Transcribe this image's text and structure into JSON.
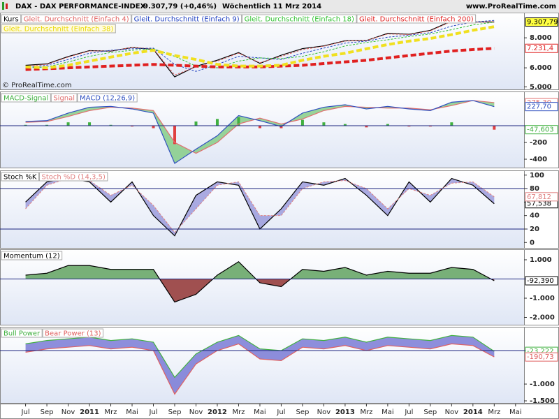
{
  "header": {
    "title": "DAX - DAX PERFORMANCE-INDEX",
    "quote": "9.307,79 (+0,46%)",
    "period": "Wöchentlich 11 Mrz 2014",
    "site": "www.ProRealTime.com",
    "copyright": "© ProRealTime.com"
  },
  "x_axis": {
    "x": [
      1,
      3,
      5,
      7,
      9,
      11,
      13,
      15,
      17,
      19,
      21,
      23,
      25,
      27,
      29,
      31,
      33,
      35,
      37,
      39,
      41,
      43,
      45
    ],
    "xlim": [
      -1.4,
      47.8
    ],
    "xticks": [
      {
        "value": 1,
        "label": "Jul"
      },
      {
        "value": 3,
        "label": "Sep"
      },
      {
        "value": 5,
        "label": "Nov"
      },
      {
        "value": 7,
        "label": "2011"
      },
      {
        "value": 9,
        "label": "Mrz"
      },
      {
        "value": 11,
        "label": "Mai"
      },
      {
        "value": 13,
        "label": "Jul"
      },
      {
        "value": 15,
        "label": "Sep"
      },
      {
        "value": 17,
        "label": "Nov"
      },
      {
        "value": 19,
        "label": "2012"
      },
      {
        "value": 21,
        "label": "Mrz"
      },
      {
        "value": 23,
        "label": "Mai"
      },
      {
        "value": 25,
        "label": "Jul"
      },
      {
        "value": 27,
        "label": "Sep"
      },
      {
        "value": 29,
        "label": "Nov"
      },
      {
        "value": 31,
        "label": "2013"
      },
      {
        "value": 33,
        "label": "Mrz"
      },
      {
        "value": 35,
        "label": "Mai"
      },
      {
        "value": 37,
        "label": "Jul"
      },
      {
        "value": 39,
        "label": "Sep"
      },
      {
        "value": 41,
        "label": "Nov"
      },
      {
        "value": 43,
        "label": "2014"
      },
      {
        "value": 45,
        "label": "Mrz"
      },
      {
        "value": 47,
        "label": "Mai"
      }
    ]
  },
  "chart_data": [
    {
      "type": "line",
      "log_scale": true,
      "ylim": [
        4880,
        10190
      ],
      "yticks": [
        {
          "value": 5000,
          "label": "5.000"
        },
        {
          "value": 6000,
          "label": "6.000"
        },
        {
          "value": 8000,
          "label": "8.000"
        }
      ],
      "series": [
        {
          "name": "Kurs",
          "color": "#000000",
          "style": "line",
          "last_label": "9.307,79",
          "label_fill": "#ffff40",
          "values": [
            6148,
            6229,
            6688,
            7077,
            7041,
            7293,
            7158,
            5502,
            6089,
            6458,
            6947,
            6264,
            6772,
            7216,
            7405,
            7776,
            7795,
            8348,
            8276,
            8594,
            9405,
            9306,
            9307.79
          ]
        },
        {
          "name": "Gleit. Durchschnitt (Einfach 4)",
          "color": "#e06060",
          "style": "dashed",
          "values": [
            6100,
            6200,
            6650,
            7050,
            7050,
            7300,
            7200,
            5600,
            6050,
            6400,
            6900,
            6300,
            6700,
            7150,
            7380,
            7750,
            7800,
            8300,
            8250,
            8550,
            9350,
            9300,
            9350
          ]
        },
        {
          "name": "Gleit. Durchschnitt (Einfach 9)",
          "color": "#2040c0",
          "style": "dashed",
          "values": [
            6000,
            6150,
            6500,
            6900,
            7100,
            7200,
            7250,
            6200,
            5800,
            6200,
            6700,
            6600,
            6500,
            6900,
            7250,
            7600,
            7750,
            8050,
            8200,
            8400,
            8950,
            9300,
            9450
          ]
        },
        {
          "name": "Gleit. Durchschnitt (Einfach 18)",
          "color": "#30c030",
          "style": "dashed",
          "values": [
            6000,
            6050,
            6350,
            6700,
            6950,
            7100,
            7200,
            6700,
            6100,
            6000,
            6400,
            6600,
            6550,
            6700,
            7000,
            7400,
            7650,
            7850,
            8100,
            8300,
            8650,
            9050,
            9300
          ]
        },
        {
          "name": "Gleit. Durchschnitt (Einfach 200)",
          "color": "#e02020",
          "style": "thick-dashed",
          "last_label": "7.231,4",
          "label_fill": "#ffffff",
          "values": [
            5900,
            5950,
            6000,
            6050,
            6100,
            6150,
            6200,
            6150,
            6100,
            6050,
            6050,
            6050,
            6100,
            6150,
            6250,
            6350,
            6450,
            6600,
            6750,
            6900,
            7050,
            7150,
            7231.4
          ]
        },
        {
          "name": "Gleit. Durchschnitt (Einfach 38)",
          "color": "#f0e020",
          "style": "thick-dashed",
          "values": [
            6050,
            6000,
            6150,
            6400,
            6650,
            6900,
            7100,
            6750,
            6500,
            6200,
            6100,
            6100,
            6150,
            6450,
            6700,
            6900,
            7200,
            7500,
            7750,
            7950,
            8250,
            8600,
            8900
          ]
        }
      ]
    },
    {
      "type": "line",
      "ylim": [
        -500,
        408
      ],
      "yticks": [
        -200,
        -400
      ],
      "hlines": [
        0
      ],
      "fill_between": {
        "series": [
          2,
          1
        ],
        "color": "#78c878"
      },
      "series": [
        {
          "name": "MACD-Signal",
          "color": "#40b040",
          "color_negative": "#e04040",
          "style": "bar",
          "last_label": "-47,603",
          "label_fill": "#ffffff",
          "values": [
            10,
            10,
            40,
            40,
            10,
            -10,
            -30,
            -220,
            50,
            80,
            100,
            -30,
            -30,
            70,
            40,
            20,
            -20,
            20,
            -10,
            -10,
            40,
            0,
            -47.603
          ]
        },
        {
          "name": "Signal",
          "color": "#e07070",
          "style": "line",
          "last_label": "275,30",
          "label_fill": "#ffffff",
          "values": [
            40,
            50,
            110,
            180,
            220,
            210,
            180,
            -200,
            -330,
            -200,
            20,
            90,
            20,
            80,
            180,
            230,
            220,
            210,
            210,
            190,
            240,
            300,
            275.3
          ]
        },
        {
          "name": "MACD (12,26,9)",
          "color": "#3050c0",
          "style": "line",
          "last_label": "227,70",
          "label_fill": "#ffffff",
          "values": [
            50,
            60,
            150,
            220,
            230,
            200,
            150,
            -450,
            -280,
            -120,
            120,
            60,
            -10,
            150,
            220,
            250,
            200,
            230,
            200,
            180,
            280,
            300,
            227.7
          ]
        }
      ]
    },
    {
      "type": "line",
      "ylim": [
        -8,
        107
      ],
      "yticks": [
        0,
        20,
        40,
        60,
        80,
        100
      ],
      "hlines": [
        80,
        20
      ],
      "fill_between": {
        "series": [
          0,
          1
        ],
        "color": "#9090d8"
      },
      "series": [
        {
          "name": "Stoch %K",
          "color": "#000000",
          "style": "line",
          "last_label": "57,538",
          "label_fill": "#ffffff",
          "values": [
            60,
            90,
            95,
            90,
            60,
            90,
            40,
            10,
            70,
            90,
            85,
            20,
            50,
            90,
            85,
            95,
            70,
            40,
            90,
            60,
            95,
            85,
            57.538
          ]
        },
        {
          "name": "Stoch %D (14,3,5)",
          "color": "#e08080",
          "style": "dashed",
          "last_label": "67,812",
          "label_fill": "#ffffff",
          "values": [
            50,
            85,
            95,
            92,
            70,
            85,
            55,
            15,
            50,
            85,
            90,
            40,
            40,
            80,
            90,
            92,
            80,
            50,
            80,
            70,
            88,
            90,
            67.812
          ]
        }
      ]
    },
    {
      "type": "line",
      "ylim": [
        -2382,
        1545
      ],
      "yticks": [
        {
          "value": 1000,
          "label": "1.000"
        },
        {
          "value": -1000,
          "label": "-1.000"
        },
        {
          "value": -2000,
          "label": "-2.000"
        }
      ],
      "hlines": [
        0
      ],
      "series": [
        {
          "name": "Momentum (12)",
          "color": "#000000",
          "style": "area",
          "fill_above": "#78b078",
          "fill_below": "#a05050",
          "last_label": "-92,390",
          "label_fill": "#ffffff",
          "values": [
            200,
            300,
            700,
            700,
            500,
            500,
            500,
            -1200,
            -800,
            200,
            900,
            -200,
            -400,
            500,
            400,
            600,
            200,
            400,
            300,
            300,
            600,
            500,
            -92.39
          ]
        }
      ]
    },
    {
      "type": "line",
      "ylim": [
        -1562,
        708
      ],
      "yticks": [
        {
          "value": -1000,
          "label": "-1.000"
        },
        {
          "value": -1500,
          "label": "-1.500"
        }
      ],
      "hlines": [
        0
      ],
      "fill_between": {
        "series": [
          0,
          1
        ],
        "color": "#6a6ad0"
      },
      "series": [
        {
          "name": "Bull Power",
          "color": "#40b040",
          "style": "line",
          "last_label": "-23,222",
          "label_fill": "#ffffff",
          "values": [
            200,
            300,
            350,
            400,
            300,
            350,
            250,
            -800,
            -100,
            250,
            450,
            50,
            0,
            350,
            300,
            400,
            250,
            400,
            350,
            300,
            450,
            400,
            -23.222
          ]
        },
        {
          "name": "Bear Power (13)",
          "color": "#e06060",
          "style": "line",
          "last_label": "-190,73",
          "label_fill": "#ffffff",
          "values": [
            -50,
            50,
            100,
            150,
            50,
            100,
            0,
            -1300,
            -400,
            0,
            200,
            -250,
            -300,
            100,
            50,
            150,
            0,
            150,
            100,
            50,
            200,
            150,
            -190.73
          ]
        }
      ]
    }
  ]
}
